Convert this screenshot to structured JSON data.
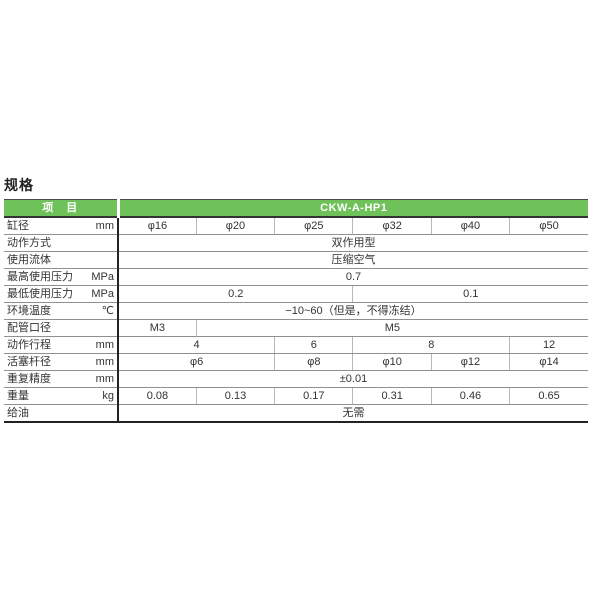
{
  "title": "规格",
  "colors": {
    "header_green": "#6fc159",
    "header_text": "#ffffff",
    "text": "#333333",
    "row_line": "#909090",
    "cell_line": "#b8b8b8",
    "strong_line": "#222222"
  },
  "table": {
    "header": {
      "item": "项　目",
      "model": "CKW-A-HP1"
    },
    "rows": [
      {
        "label": "缸径",
        "unit": "mm",
        "cells": [
          {
            "t": "φ16"
          },
          {
            "t": "φ20"
          },
          {
            "t": "φ25"
          },
          {
            "t": "φ32"
          },
          {
            "t": "φ40"
          },
          {
            "t": "φ50"
          }
        ]
      },
      {
        "label": "动作方式",
        "unit": "",
        "cells": [
          {
            "t": "双作用型",
            "span": 6
          }
        ]
      },
      {
        "label": "使用流体",
        "unit": "",
        "cells": [
          {
            "t": "压缩空气",
            "span": 6
          }
        ]
      },
      {
        "label": "最高使用压力",
        "unit": "MPa",
        "cells": [
          {
            "t": "0.7",
            "span": 6
          }
        ]
      },
      {
        "label": "最低使用压力",
        "unit": "MPa",
        "cells": [
          {
            "t": "0.2",
            "span": 3
          },
          {
            "t": "0.1",
            "span": 3
          }
        ]
      },
      {
        "label": "环境温度",
        "unit": "℃",
        "cells": [
          {
            "t": "−10~60（但是，不得冻结）",
            "span": 6
          }
        ]
      },
      {
        "label": "配管口径",
        "unit": "",
        "cells": [
          {
            "t": "M3",
            "span": 1
          },
          {
            "t": "M5",
            "span": 5
          }
        ]
      },
      {
        "label": "动作行程",
        "unit": "mm",
        "cells": [
          {
            "t": "4",
            "span": 2
          },
          {
            "t": "6",
            "span": 1
          },
          {
            "t": "8",
            "span": 2
          },
          {
            "t": "12",
            "span": 1
          }
        ]
      },
      {
        "label": "活塞杆径",
        "unit": "mm",
        "cells": [
          {
            "t": "φ6",
            "span": 2
          },
          {
            "t": "φ8",
            "span": 1
          },
          {
            "t": "φ10",
            "span": 1
          },
          {
            "t": "φ12",
            "span": 1
          },
          {
            "t": "φ14",
            "span": 1
          }
        ]
      },
      {
        "label": "重复精度",
        "unit": "mm",
        "cells": [
          {
            "t": "±0.01",
            "span": 6
          }
        ]
      },
      {
        "label": "重量",
        "unit": "kg",
        "cells": [
          {
            "t": "0.08"
          },
          {
            "t": "0.13"
          },
          {
            "t": "0.17"
          },
          {
            "t": "0.31"
          },
          {
            "t": "0.46"
          },
          {
            "t": "0.65"
          }
        ]
      },
      {
        "label": "给油",
        "unit": "",
        "cells": [
          {
            "t": "无需",
            "span": 6
          }
        ]
      }
    ]
  }
}
